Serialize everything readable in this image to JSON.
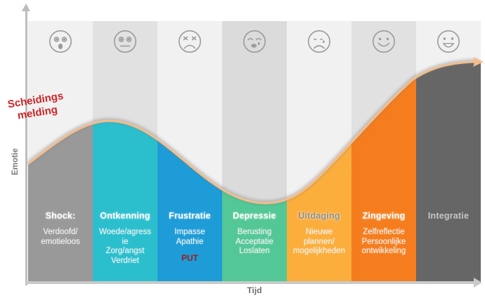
{
  "note": {
    "line1": "Scheidings",
    "line2": "melding",
    "color": "#ce2326"
  },
  "axes": {
    "y_label": "Emotie",
    "x_label": "Tijd"
  },
  "colors": {
    "curve": "#f2be8e",
    "curve_shadow": "#7d7d7d",
    "axis": "#c2c2c2",
    "emoji_stroke": "#9b9b9b",
    "footnote_red": "#9b1c1c"
  },
  "stages": [
    {
      "name": "Shock:",
      "emoji": "shocked-face",
      "fill": "#999999",
      "bg": "#f1f1f1",
      "details": [
        "Verdoofd/",
        "emotieloos"
      ],
      "footnote": ""
    },
    {
      "name": "Ontkenning",
      "emoji": "neutral-face",
      "fill": "#2bbfce",
      "bg": "#e1e1e1",
      "details": [
        "Woede/agress",
        "ie",
        "Zorg/angst",
        "Verdriet"
      ],
      "footnote": ""
    },
    {
      "name": "Frustratie",
      "emoji": "angry-face",
      "fill": "#1e9cd8",
      "bg": "#f1f1f1",
      "details": [
        "Impasse",
        "Apathie"
      ],
      "footnote": "PUT"
    },
    {
      "name": "Depressie",
      "emoji": "crying-face",
      "fill": "#53c795",
      "bg": "#dbdbdb",
      "details": [
        "Berusting",
        "Acceptatie",
        "Loslaten"
      ],
      "footnote": ""
    },
    {
      "name": "Uitdaging",
      "emoji": "sad-tear-face",
      "fill": "#fbae3c",
      "bg": "#f1f1f1",
      "details": [
        "Nieuwe",
        "plannen/",
        "mogelijkheden"
      ],
      "footnote": ""
    },
    {
      "name": "Zingeving",
      "emoji": "smiling-face",
      "fill": "#f57d1e",
      "bg": "#e1e1e1",
      "details": [
        "Zelfreflectie",
        "Persoonlijke",
        "ontwikkeling"
      ],
      "footnote": ""
    },
    {
      "name": "Integratie",
      "emoji": "grinning-face",
      "fill": "#666666",
      "bg": "#f1f1f1",
      "details": [],
      "footnote": ""
    }
  ],
  "curve_meaning": "Emotion level over time: starts mid, peaks in Ontkenning, dips to lowest in Depressie, rises to highest in Integratie"
}
